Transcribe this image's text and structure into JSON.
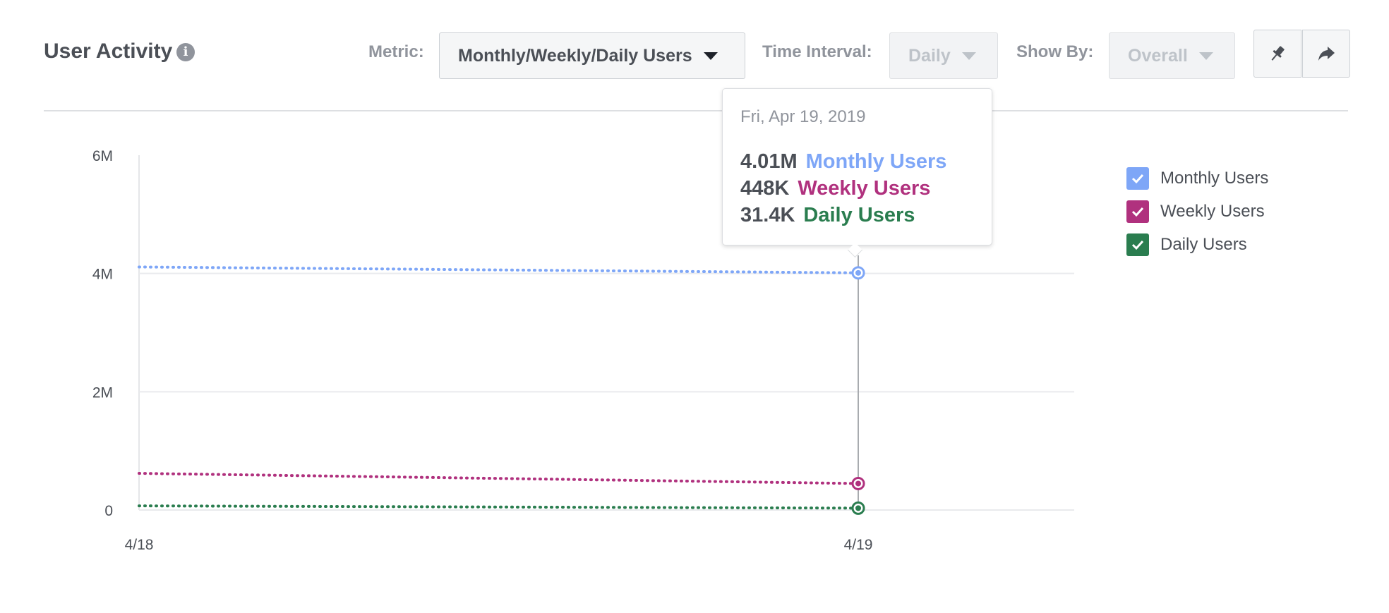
{
  "header": {
    "title": "User Activity",
    "info_icon": "info-icon",
    "metric_label": "Metric:",
    "metric_value": "Monthly/Weekly/Daily Users",
    "interval_label": "Time Interval:",
    "interval_value": "Daily",
    "showby_label": "Show By:",
    "showby_value": "Overall",
    "pin_icon": "pin-icon",
    "share_icon": "share-icon"
  },
  "tooltip": {
    "date": "Fri, Apr 19, 2019",
    "rows": [
      {
        "value": "4.01M",
        "name": "Monthly Users"
      },
      {
        "value": "448K",
        "name": "Weekly Users"
      },
      {
        "value": "31.4K",
        "name": "Daily Users"
      }
    ]
  },
  "legend": {
    "items": [
      {
        "label": "Monthly Users",
        "color": "#7ea6f7",
        "checked": true
      },
      {
        "label": "Weekly Users",
        "color": "#b0317e",
        "checked": true
      },
      {
        "label": "Daily Users",
        "color": "#2a7d4f",
        "checked": true
      }
    ]
  },
  "chart_data": {
    "type": "line",
    "x": [
      "4/18",
      "4/19"
    ],
    "series": [
      {
        "name": "Monthly Users",
        "values": [
          4110000,
          4010000
        ],
        "color": "#7ea6f7"
      },
      {
        "name": "Weekly Users",
        "values": [
          620000,
          448000
        ],
        "color": "#b0317e"
      },
      {
        "name": "Daily Users",
        "values": [
          70000,
          31400
        ],
        "color": "#2a7d4f"
      }
    ],
    "yticks": [
      0,
      2000000,
      4000000,
      6000000
    ],
    "ytick_labels": [
      "0",
      "2M",
      "4M",
      "6M"
    ],
    "ylim": [
      0,
      6000000
    ],
    "highlight_x": "4/19",
    "line_style": "dotted",
    "grid": "horizontal",
    "legend_position": "right"
  }
}
